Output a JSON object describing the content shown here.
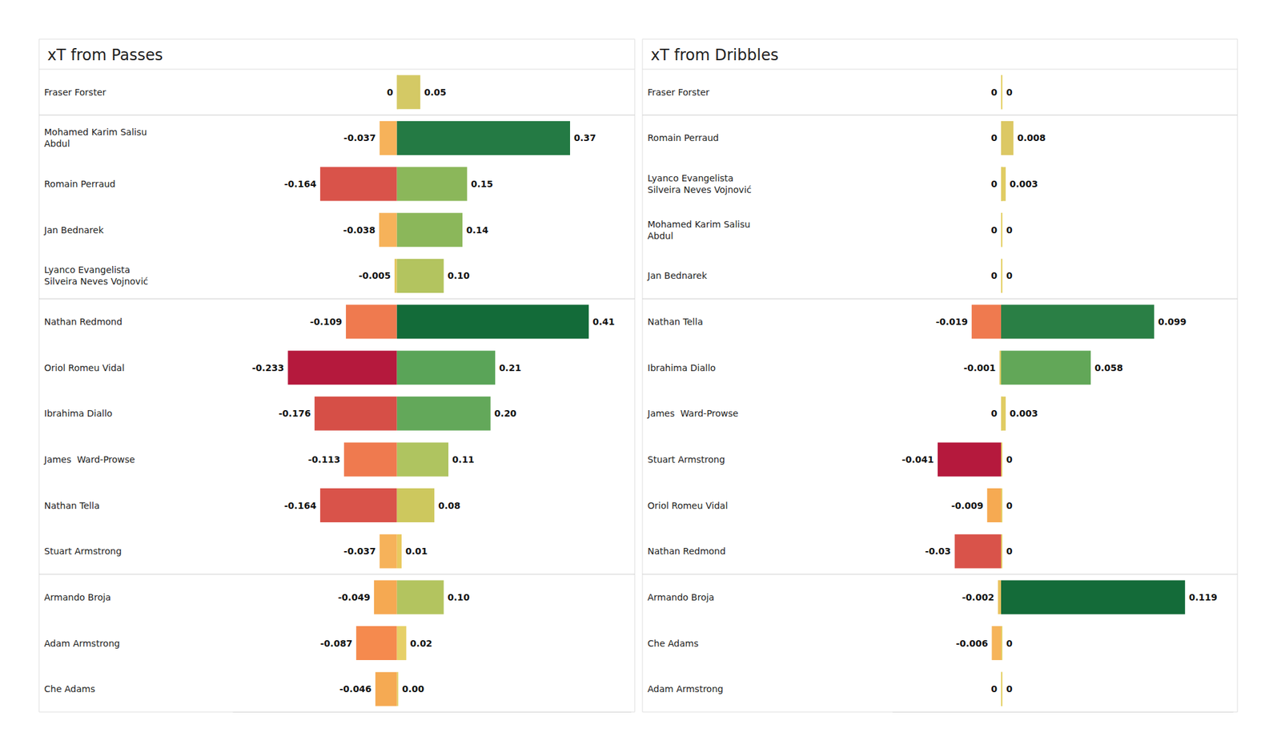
{
  "chart_data": [
    {
      "type": "bar",
      "title": "xT from Passes",
      "orientation": "horizontal",
      "categories": [
        "Fraser Forster",
        "Mohamed Karim Salisu\nAbdul",
        "Romain Perraud",
        "Jan Bednarek",
        "Lyanco Evangelista\nSilveira Neves Vojnović",
        "Nathan Redmond",
        "Oriol Romeu Vidal",
        "Ibrahima Diallo",
        "James  Ward-Prowse",
        "Nathan Tella",
        "Stuart Armstrong",
        "Armando Broja",
        "Adam Armstrong",
        "Che Adams"
      ],
      "group_sizes": [
        1,
        4,
        6,
        3
      ],
      "series": [
        {
          "values": [
            0,
            -0.037,
            -0.164,
            -0.038,
            -0.005,
            -0.109,
            -0.233,
            -0.176,
            -0.113,
            -0.164,
            -0.037,
            -0.049,
            -0.087,
            -0.046
          ],
          "colors": [
            "#e3cf62",
            "#f6b25a",
            "#d9534a",
            "#f6b25a",
            "#e4c65f",
            "#ef7a4f",
            "#b5193d",
            "#d64f47",
            "#ef7a4f",
            "#d9534a",
            "#f6b25a",
            "#f5a952",
            "#f58a4e",
            "#f5aa53"
          ]
        },
        {
          "values": [
            0.05,
            0.37,
            0.15,
            0.14,
            0.1,
            0.41,
            0.21,
            0.2,
            0.11,
            0.08,
            0.01,
            0.1,
            0.02,
            0.0
          ],
          "value_labels": [
            "0.05",
            "0.37",
            "0.15",
            "0.14",
            "0.10",
            "0.41",
            "0.21",
            "0.20",
            "0.11",
            "0.08",
            "0.01",
            "0.10",
            "0.02",
            "0.00"
          ],
          "colors": [
            "#d4c965",
            "#247a44",
            "#8bb75a",
            "#8bb75a",
            "#b3c45f",
            "#136b39",
            "#5aa458",
            "#63a85a",
            "#afc460",
            "#cdc85e",
            "#e9c95f",
            "#b3c45f",
            "#e6d068",
            "#e3cf62"
          ]
        }
      ],
      "xlim": [
        -0.35,
        0.5
      ],
      "tick_labels": false,
      "grid": false,
      "data_labels": true
    },
    {
      "type": "bar",
      "title": "xT from Dribbles",
      "orientation": "horizontal",
      "categories": [
        "Fraser Forster",
        "Romain Perraud",
        "Lyanco Evangelista\nSilveira Neves Vojnović",
        "Mohamed Karim Salisu\nAbdul",
        "Jan Bednarek",
        "Nathan Tella",
        "Ibrahima Diallo",
        "James  Ward-Prowse",
        "Stuart Armstrong",
        "Oriol Romeu Vidal",
        "Nathan Redmond",
        "Armando Broja",
        "Che Adams",
        "Adam Armstrong"
      ],
      "group_sizes": [
        1,
        4,
        6,
        3
      ],
      "series": [
        {
          "values": [
            0,
            0,
            0,
            0,
            0,
            -0.019,
            -0.001,
            0,
            -0.041,
            -0.009,
            -0.03,
            -0.002,
            -0.006,
            0
          ],
          "colors": [
            "#e3cf62",
            "#e3cf62",
            "#e3cf62",
            "#e3cf62",
            "#e3cf62",
            "#ef7a4f",
            "#e3cb63",
            "#e3cf62",
            "#b5193d",
            "#f6aa52",
            "#d9534a",
            "#e9c25e",
            "#f6b45a",
            "#e3cf62"
          ]
        },
        {
          "values": [
            0,
            0.008,
            0.003,
            0,
            0,
            0.099,
            0.058,
            0.003,
            0,
            0,
            0,
            0.119,
            0,
            0
          ],
          "colors": [
            "#e3cf62",
            "#dcc864",
            "#e0cc63",
            "#e3cf62",
            "#e3cf62",
            "#2a7f45",
            "#62a758",
            "#e0cc63",
            "#e3cf62",
            "#e3cf62",
            "#e3cf62",
            "#146b39",
            "#e3cf62",
            "#e3cf62"
          ]
        }
      ],
      "xlim": [
        -0.07,
        0.15
      ],
      "tick_labels": false,
      "grid": false,
      "data_labels": true
    }
  ]
}
